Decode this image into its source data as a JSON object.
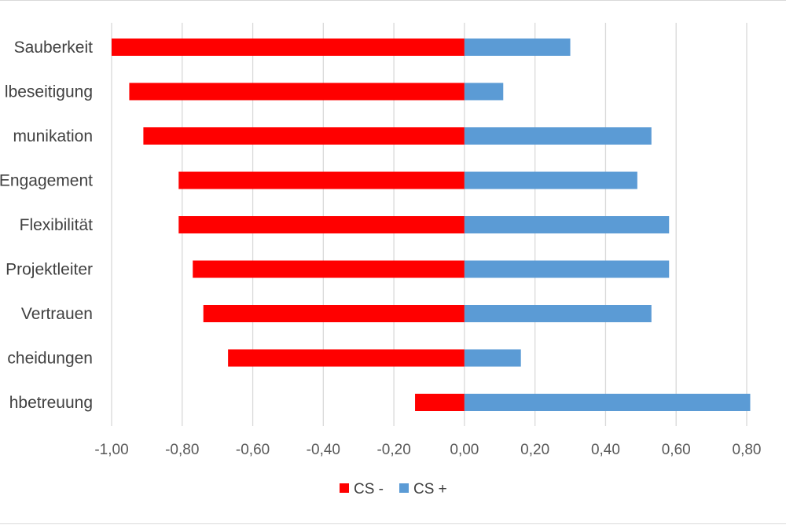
{
  "chart_data": {
    "type": "bar",
    "orientation": "horizontal",
    "stacked": true,
    "categories": [
      "Sauberkeit",
      "lbeseitigung",
      "munikation",
      "Engagement",
      "Flexibilität",
      "Projektleiter",
      "Vertrauen",
      "cheidungen",
      "hbetreuung"
    ],
    "series": [
      {
        "name": "CS -",
        "color": "#ff0000",
        "values": [
          -1.0,
          -0.95,
          -0.91,
          -0.81,
          -0.81,
          -0.77,
          -0.74,
          -0.67,
          -0.14
        ]
      },
      {
        "name": "CS +",
        "color": "#5b9bd5",
        "values": [
          0.3,
          0.11,
          0.53,
          0.49,
          0.58,
          0.58,
          0.53,
          0.16,
          0.81
        ]
      }
    ],
    "xlim": [
      -1.0,
      0.8
    ],
    "xticks": [
      -1.0,
      -0.8,
      -0.6,
      -0.4,
      -0.2,
      0.0,
      0.2,
      0.4,
      0.6,
      0.8
    ],
    "xtick_labels": [
      "-1,00",
      "-0,80",
      "-0,60",
      "-0,40",
      "-0,20",
      "0,00",
      "0,20",
      "0,40",
      "0,60",
      "0,80"
    ],
    "title": "",
    "xlabel": "",
    "ylabel": "",
    "grid": "vertical",
    "legend_position": "bottom"
  }
}
